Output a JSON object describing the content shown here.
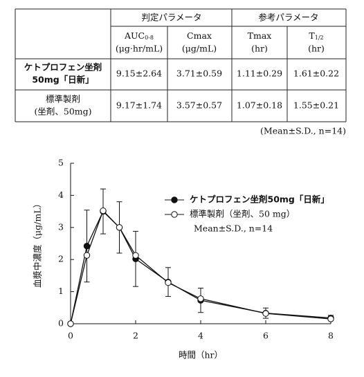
{
  "table": {
    "header_groups": [
      "判定パラメータ",
      "参考パラメータ"
    ],
    "columns": [
      {
        "label": "AUC",
        "sub": "0-8",
        "unit": "(μg·hr/mL)"
      },
      {
        "label": "Cmax",
        "unit": "(μg/mL)"
      },
      {
        "label": "Tmax",
        "unit": "(hr)"
      },
      {
        "label": "T",
        "sub": "1/2",
        "unit": "(hr)"
      }
    ],
    "rows": [
      {
        "name": [
          "ケトプロフェン坐剤",
          "50mg「日新」"
        ],
        "cells": [
          "9.15±2.64",
          "3.71±0.59",
          "1.11±0.29",
          "1.61±0.22"
        ]
      },
      {
        "name": [
          "標準製剤",
          "(坐剤、50mg)"
        ],
        "cells": [
          "9.17±1.74",
          "3.57±0.57",
          "1.07±0.18",
          "1.55±0.21"
        ]
      }
    ],
    "note": "(Mean±S.D., n=14)"
  },
  "chart_data": {
    "type": "line",
    "x_label": "時間（hr）",
    "y_label": "血漿中濃度（μg/mL）",
    "annotation": "Mean±S.D., n=14",
    "x": [
      0,
      0.5,
      1,
      1.5,
      2,
      3,
      4,
      6,
      8
    ],
    "series": [
      {
        "name": "ケトプロフェン坐剤50mg「日新」",
        "color": "#111111",
        "marker": "filled",
        "values": [
          0,
          2.42,
          3.5,
          3.0,
          2.02,
          1.3,
          0.73,
          0.33,
          0.18
        ],
        "errors": [
          0,
          1.12,
          0.7,
          0.8,
          0.86,
          0.45,
          0.38,
          0.16,
          0.08
        ]
      },
      {
        "name": "標準製剤（坐剤、50 mg）",
        "color": "#111111",
        "marker": "open",
        "values": [
          0,
          2.13,
          3.52,
          3.0,
          2.13,
          1.28,
          0.78,
          0.32,
          0.15
        ]
      }
    ],
    "xlim": [
      0,
      8
    ],
    "xticks": [
      0,
      2,
      4,
      6,
      8
    ],
    "ylim": [
      0,
      5
    ],
    "yticks": [
      0,
      1,
      2,
      3,
      4,
      5
    ]
  }
}
